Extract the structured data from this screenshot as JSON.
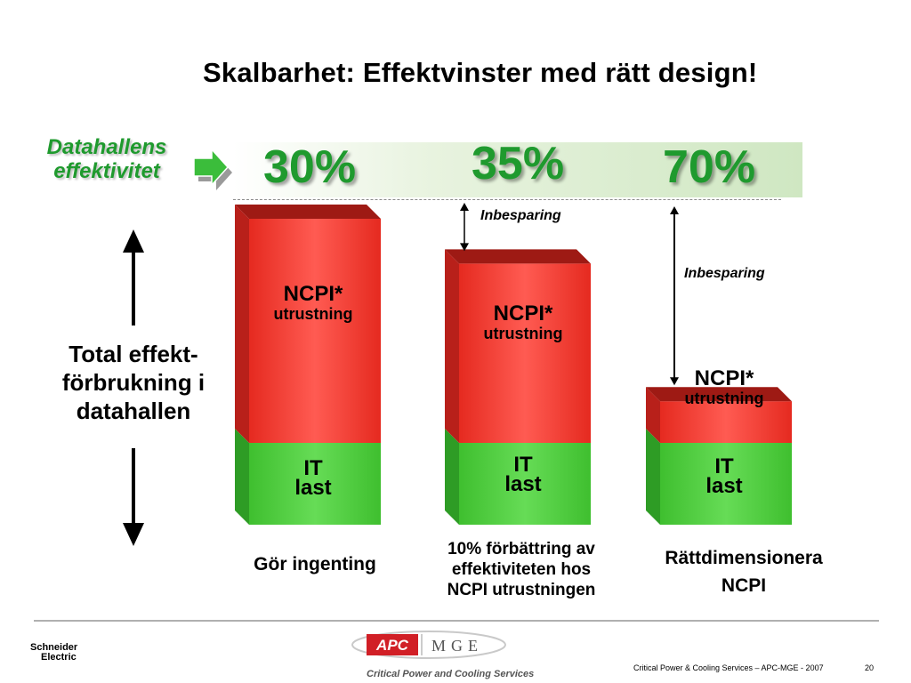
{
  "title": "Skalbarhet: Effektvinster med rätt design!",
  "efficiency_label": {
    "line1": "Datahallens",
    "line2": "effektivitet"
  },
  "total_label": {
    "line1": "Total effekt-",
    "line2": "förbrukning i",
    "line3": "datahallen"
  },
  "annotation": "Inbesparing",
  "colors": {
    "green": "#1f9a2e",
    "red": "#e52a20",
    "bar_green": "#5cd14a"
  },
  "chart_data": {
    "type": "bar",
    "stacked": true,
    "categories": [
      [
        "Gör ingenting"
      ],
      [
        "10%  förbättring av",
        "effektiviteten hos",
        "NCPI utrustningen"
      ],
      [
        "Rättdimensionera",
        "NCPI"
      ]
    ],
    "efficiency": [
      "30%",
      "35%",
      "70%"
    ],
    "series": [
      {
        "name": "IT last",
        "label_top": "IT",
        "label_bottom": "last",
        "values": [
          30,
          30,
          30
        ]
      },
      {
        "name": "NCPI* utrustning",
        "label_top": "NCPI*",
        "label_bottom": "utrustning",
        "values": [
          70,
          56,
          13
        ]
      }
    ]
  },
  "footer": {
    "brand_line1": "Schneider",
    "brand_line2": "Electric",
    "logo_left": "APC",
    "logo_right": "MGE",
    "tagline": "Critical Power and Cooling Services",
    "text": "Critical Power & Cooling Services – APC-MGE - 2007",
    "page": "20"
  }
}
